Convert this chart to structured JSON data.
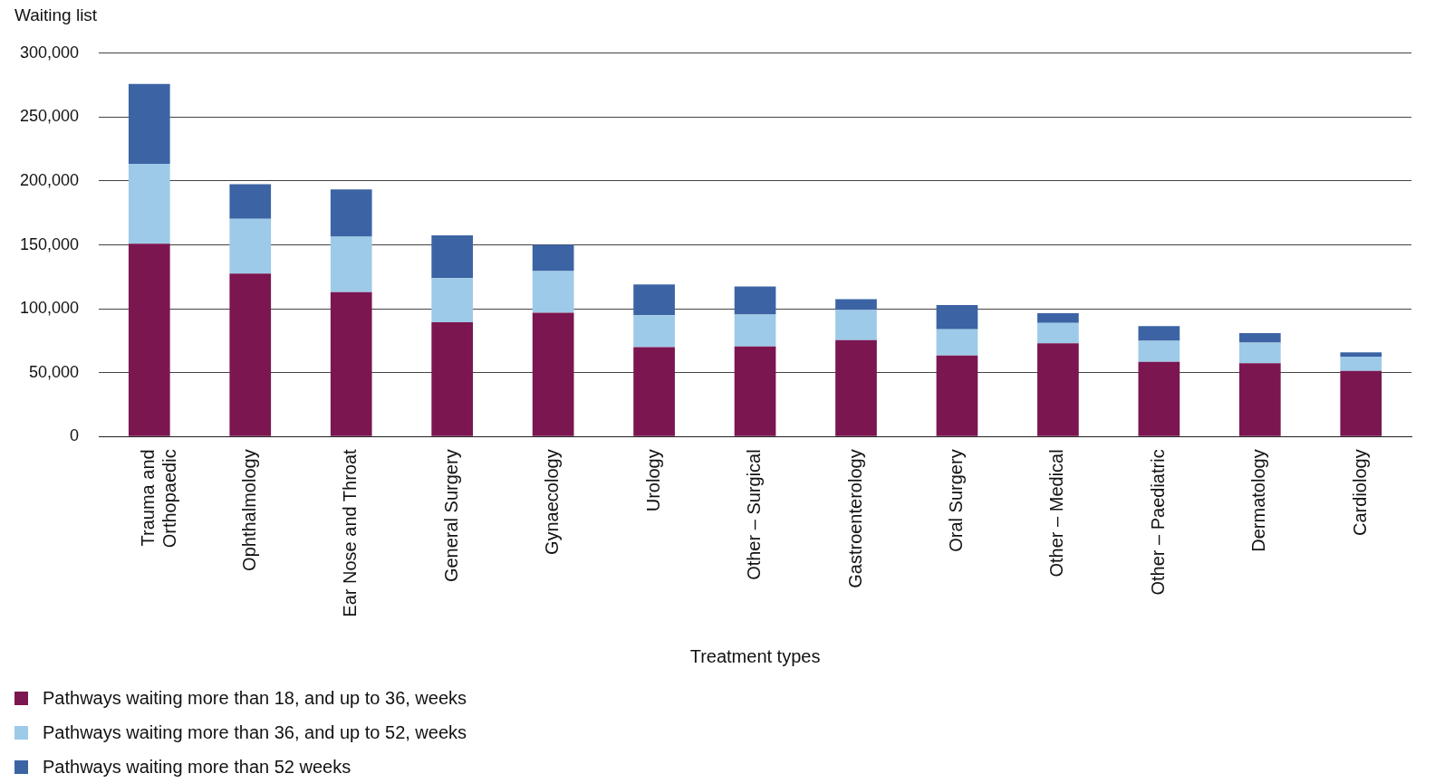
{
  "chart_data": {
    "type": "bar",
    "stacked": true,
    "ylabel": "Waiting list",
    "xlabel": "Treatment types",
    "categories": [
      "Trauma and Orthopaedic",
      "Ophthalmology",
      "Ear Nose and Throat",
      "General Surgery",
      "Gynaecology",
      "Urology",
      "Other – Surgical",
      "Gastroenterology",
      "Oral Surgery",
      "Other – Medical",
      "Other – Paediatric",
      "Dermatology",
      "Cardiology"
    ],
    "series": [
      {
        "name": "Pathways waiting more than 18, and up to 36, weeks",
        "color": "#7b1650",
        "values": [
          151000,
          127500,
          113000,
          89500,
          97000,
          70000,
          70500,
          75500,
          63500,
          73000,
          58500,
          57500,
          51500
        ]
      },
      {
        "name": "Pathways waiting more than 36, and up to 52, weeks",
        "color": "#9dcae8",
        "values": [
          62500,
          43000,
          43500,
          34500,
          32500,
          25000,
          25000,
          23500,
          20500,
          16000,
          16500,
          16000,
          11000
        ]
      },
      {
        "name": "Pathways waiting more than 52 weeks",
        "color": "#3c64a4",
        "values": [
          62500,
          27000,
          37000,
          33500,
          20500,
          24000,
          22000,
          8500,
          19000,
          7500,
          11500,
          7500,
          3500
        ]
      }
    ],
    "ylim": [
      0,
      300000
    ],
    "yticks": [
      0,
      {
        "value": 50000,
        "label": "50,000"
      },
      {
        "value": 100000,
        "label": "100,000"
      },
      {
        "value": 150000,
        "label": "150,000"
      },
      {
        "value": 200000,
        "label": "200,000"
      },
      {
        "value": 250000,
        "label": "250,000"
      },
      {
        "value": 300000,
        "label": "300,000"
      }
    ],
    "grid": "y",
    "legend": "bottom left"
  }
}
